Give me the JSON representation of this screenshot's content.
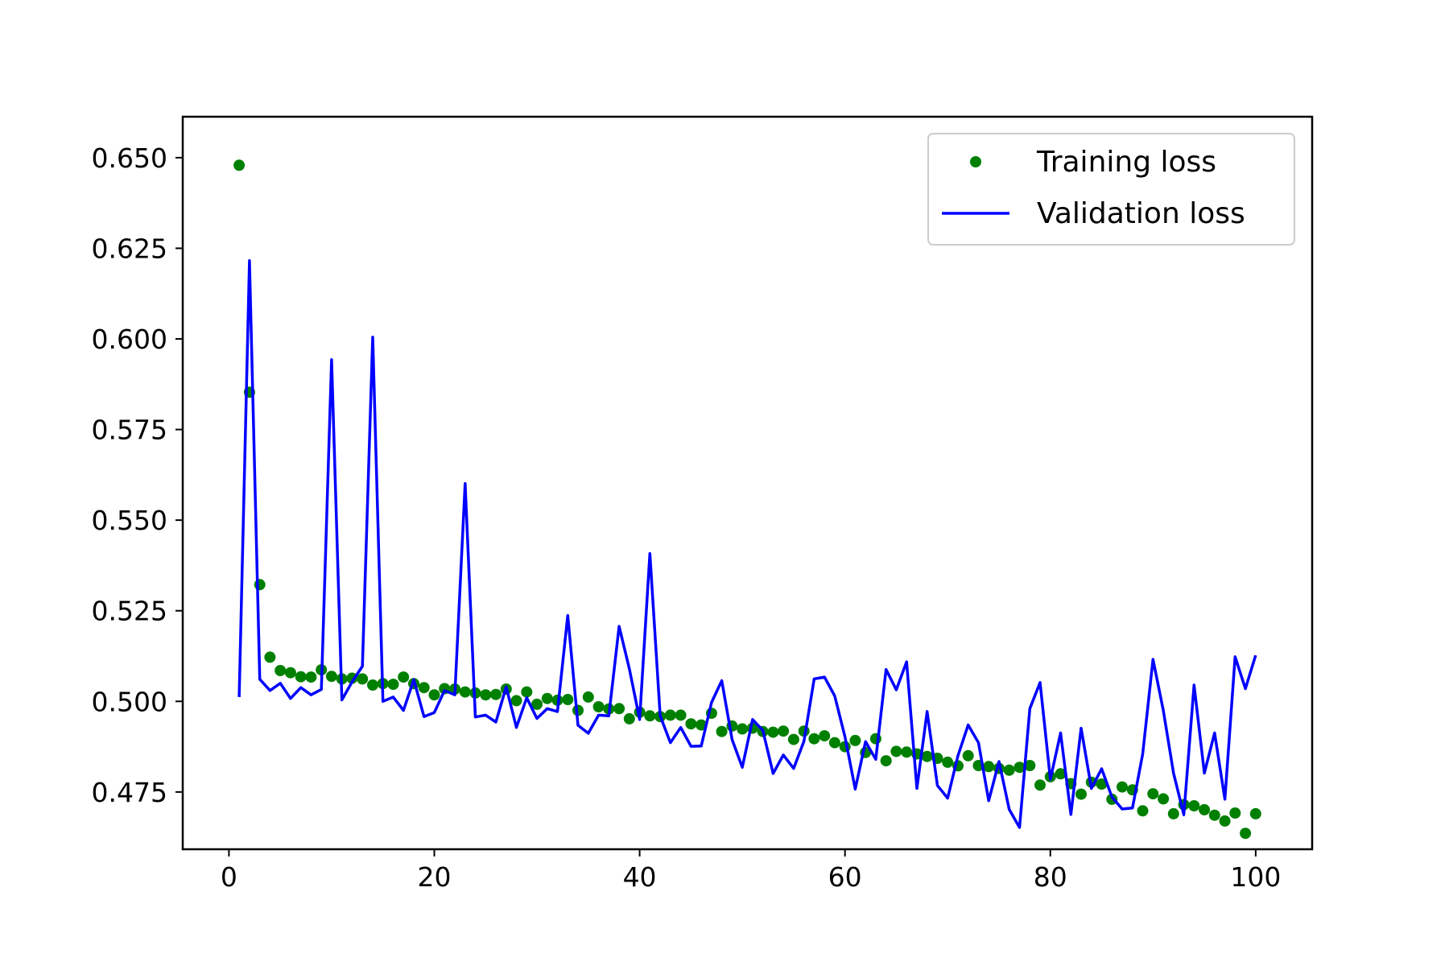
{
  "chart_data": {
    "type": "line",
    "title": "",
    "xlabel": "",
    "ylabel": "",
    "xlim": [
      -4.5,
      105.5
    ],
    "ylim": [
      0.4592,
      0.6613
    ],
    "xticks": [
      0,
      20,
      40,
      60,
      80,
      100
    ],
    "xtick_labels": [
      "0",
      "20",
      "40",
      "60",
      "80",
      "100"
    ],
    "yticks": [
      0.475,
      0.5,
      0.525,
      0.55,
      0.575,
      0.6,
      0.625,
      0.65
    ],
    "ytick_labels": [
      "0.475",
      "0.500",
      "0.525",
      "0.550",
      "0.575",
      "0.600",
      "0.625",
      "0.650"
    ],
    "grid": false,
    "legend": "top-right",
    "series": [
      {
        "name": "Training loss",
        "style": "points",
        "color": "#008000",
        "x": [
          1,
          2,
          3,
          4,
          5,
          6,
          7,
          8,
          9,
          10,
          11,
          12,
          13,
          14,
          15,
          16,
          17,
          18,
          19,
          20,
          21,
          22,
          23,
          24,
          25,
          26,
          27,
          28,
          29,
          30,
          31,
          32,
          33,
          34,
          35,
          36,
          37,
          38,
          39,
          40,
          41,
          42,
          43,
          44,
          45,
          46,
          47,
          48,
          49,
          50,
          51,
          52,
          53,
          54,
          55,
          56,
          57,
          58,
          59,
          60,
          61,
          62,
          63,
          64,
          65,
          66,
          67,
          68,
          69,
          70,
          71,
          72,
          73,
          74,
          75,
          76,
          77,
          78,
          79,
          80,
          81,
          82,
          83,
          84,
          85,
          86,
          87,
          88,
          89,
          90,
          91,
          92,
          93,
          94,
          95,
          96,
          97,
          98,
          99,
          100
        ],
        "y": [
          0.6479,
          0.5853,
          0.5322,
          0.5122,
          0.5085,
          0.5079,
          0.5068,
          0.5067,
          0.5087,
          0.5069,
          0.5062,
          0.5064,
          0.5062,
          0.5045,
          0.5049,
          0.5047,
          0.5067,
          0.5049,
          0.5038,
          0.5018,
          0.5035,
          0.5034,
          0.5026,
          0.5023,
          0.5018,
          0.5019,
          0.5034,
          0.5002,
          0.5026,
          0.4992,
          0.5008,
          0.5003,
          0.5005,
          0.4975,
          0.5012,
          0.4985,
          0.4979,
          0.498,
          0.4952,
          0.497,
          0.496,
          0.4958,
          0.4962,
          0.4962,
          0.4938,
          0.4935,
          0.4967,
          0.4917,
          0.4932,
          0.4924,
          0.4926,
          0.4917,
          0.4915,
          0.4918,
          0.4895,
          0.4918,
          0.4897,
          0.4905,
          0.4886,
          0.4875,
          0.4892,
          0.4859,
          0.4897,
          0.4836,
          0.4862,
          0.486,
          0.4855,
          0.4848,
          0.4843,
          0.4832,
          0.4822,
          0.485,
          0.4823,
          0.482,
          0.4815,
          0.481,
          0.4818,
          0.4823,
          0.4769,
          0.4792,
          0.48,
          0.4773,
          0.4744,
          0.4777,
          0.4772,
          0.473,
          0.4764,
          0.4756,
          0.4698,
          0.4745,
          0.4731,
          0.469,
          0.4715,
          0.4712,
          0.4701,
          0.4686,
          0.467,
          0.4692,
          0.4636,
          0.469
        ]
      },
      {
        "name": "Validation loss",
        "style": "line",
        "color": "#0000ff",
        "x": [
          1,
          2,
          3,
          4,
          5,
          6,
          7,
          8,
          9,
          10,
          11,
          12,
          13,
          14,
          15,
          16,
          17,
          18,
          19,
          20,
          21,
          22,
          23,
          24,
          25,
          26,
          27,
          28,
          29,
          30,
          31,
          32,
          33,
          34,
          35,
          36,
          37,
          38,
          39,
          40,
          41,
          42,
          43,
          44,
          45,
          46,
          47,
          48,
          49,
          50,
          51,
          52,
          53,
          54,
          55,
          56,
          57,
          58,
          59,
          60,
          61,
          62,
          63,
          64,
          65,
          66,
          67,
          68,
          69,
          70,
          71,
          72,
          73,
          74,
          75,
          76,
          77,
          78,
          79,
          80,
          81,
          82,
          83,
          84,
          85,
          86,
          87,
          88,
          89,
          90,
          91,
          92,
          93,
          94,
          95,
          96,
          97,
          98,
          99,
          100
        ],
        "y": [
          0.5012,
          0.6216,
          0.5061,
          0.503,
          0.505,
          0.5008,
          0.5038,
          0.5018,
          0.5033,
          0.5943,
          0.5004,
          0.5054,
          0.5097,
          0.6005,
          0.5,
          0.5012,
          0.4975,
          0.506,
          0.4958,
          0.4969,
          0.503,
          0.5018,
          0.5601,
          0.4957,
          0.4962,
          0.4943,
          0.504,
          0.4928,
          0.501,
          0.4953,
          0.498,
          0.4972,
          0.5237,
          0.4934,
          0.4912,
          0.4962,
          0.496,
          0.5207,
          0.509,
          0.495,
          0.5408,
          0.496,
          0.4886,
          0.4928,
          0.4876,
          0.4877,
          0.4997,
          0.5057,
          0.4895,
          0.4818,
          0.495,
          0.492,
          0.4801,
          0.4852,
          0.4815,
          0.489,
          0.5062,
          0.5067,
          0.5015,
          0.4902,
          0.4758,
          0.4889,
          0.484,
          0.5088,
          0.5032,
          0.5109,
          0.476,
          0.4972,
          0.4768,
          0.4733,
          0.485,
          0.4935,
          0.4886,
          0.4726,
          0.4834,
          0.4702,
          0.4652,
          0.498,
          0.5052,
          0.4785,
          0.4913,
          0.4688,
          0.4926,
          0.476,
          0.4814,
          0.4736,
          0.4703,
          0.4706,
          0.4855,
          0.5116,
          0.4975,
          0.4802,
          0.4687,
          0.5045,
          0.4802,
          0.4913,
          0.473,
          0.5123,
          0.5035,
          0.5127
        ]
      }
    ]
  }
}
